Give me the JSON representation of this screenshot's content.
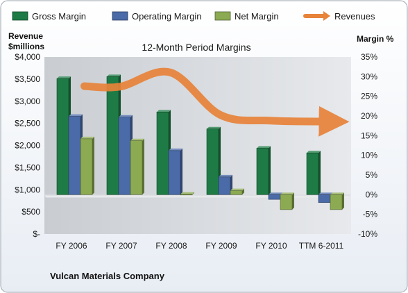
{
  "chart_data": {
    "type": "bar",
    "title": "12-Month Period Margins",
    "company": "Vulcan Materials Company",
    "categories": [
      "FY 2006",
      "FY 2007",
      "FY 2008",
      "FY 2009",
      "FY 2010",
      "TTM 6-2011"
    ],
    "left_axis": {
      "label_line1": "Revenue",
      "label_line2": "$millions",
      "min": 0,
      "max": 4000,
      "tick_values": [
        0,
        500,
        1000,
        1500,
        2000,
        2500,
        3000,
        3500,
        4000
      ],
      "tick_labels": [
        "$-",
        "$500",
        "$1,000",
        "$1,500",
        "$2,000",
        "$2,500",
        "$3,000",
        "$3,500",
        "$4,000"
      ]
    },
    "right_axis": {
      "label": "Margin %",
      "min": -10,
      "max": 35,
      "tick_values": [
        -10,
        -5,
        0,
        5,
        10,
        15,
        20,
        25,
        30,
        35
      ],
      "tick_labels": [
        "-10%",
        "-5%",
        "0%",
        "5%",
        "10%",
        "15%",
        "20%",
        "25%",
        "30%",
        "35%"
      ]
    },
    "series": [
      {
        "name": "Gross Margin",
        "kind": "bar",
        "axis": "right",
        "color": "#1e7b45",
        "values": [
          29.5,
          30.0,
          21.0,
          16.7,
          11.8,
          10.6
        ]
      },
      {
        "name": "Operating Margin",
        "kind": "bar",
        "axis": "right",
        "color": "#4a6aa8",
        "values": [
          19.9,
          19.7,
          11.2,
          4.5,
          -1.2,
          -2.0
        ]
      },
      {
        "name": "Net Margin",
        "kind": "bar",
        "axis": "right",
        "color": "#8caa52",
        "values": [
          14.2,
          13.7,
          0.1,
          1.0,
          -3.8,
          -3.8
        ]
      },
      {
        "name": "Revenues",
        "kind": "line",
        "axis": "left",
        "color": "#e8833a",
        "values": [
          3340,
          3330,
          3650,
          2690,
          2560,
          2540
        ]
      }
    ],
    "grid": false,
    "legend": "top"
  }
}
